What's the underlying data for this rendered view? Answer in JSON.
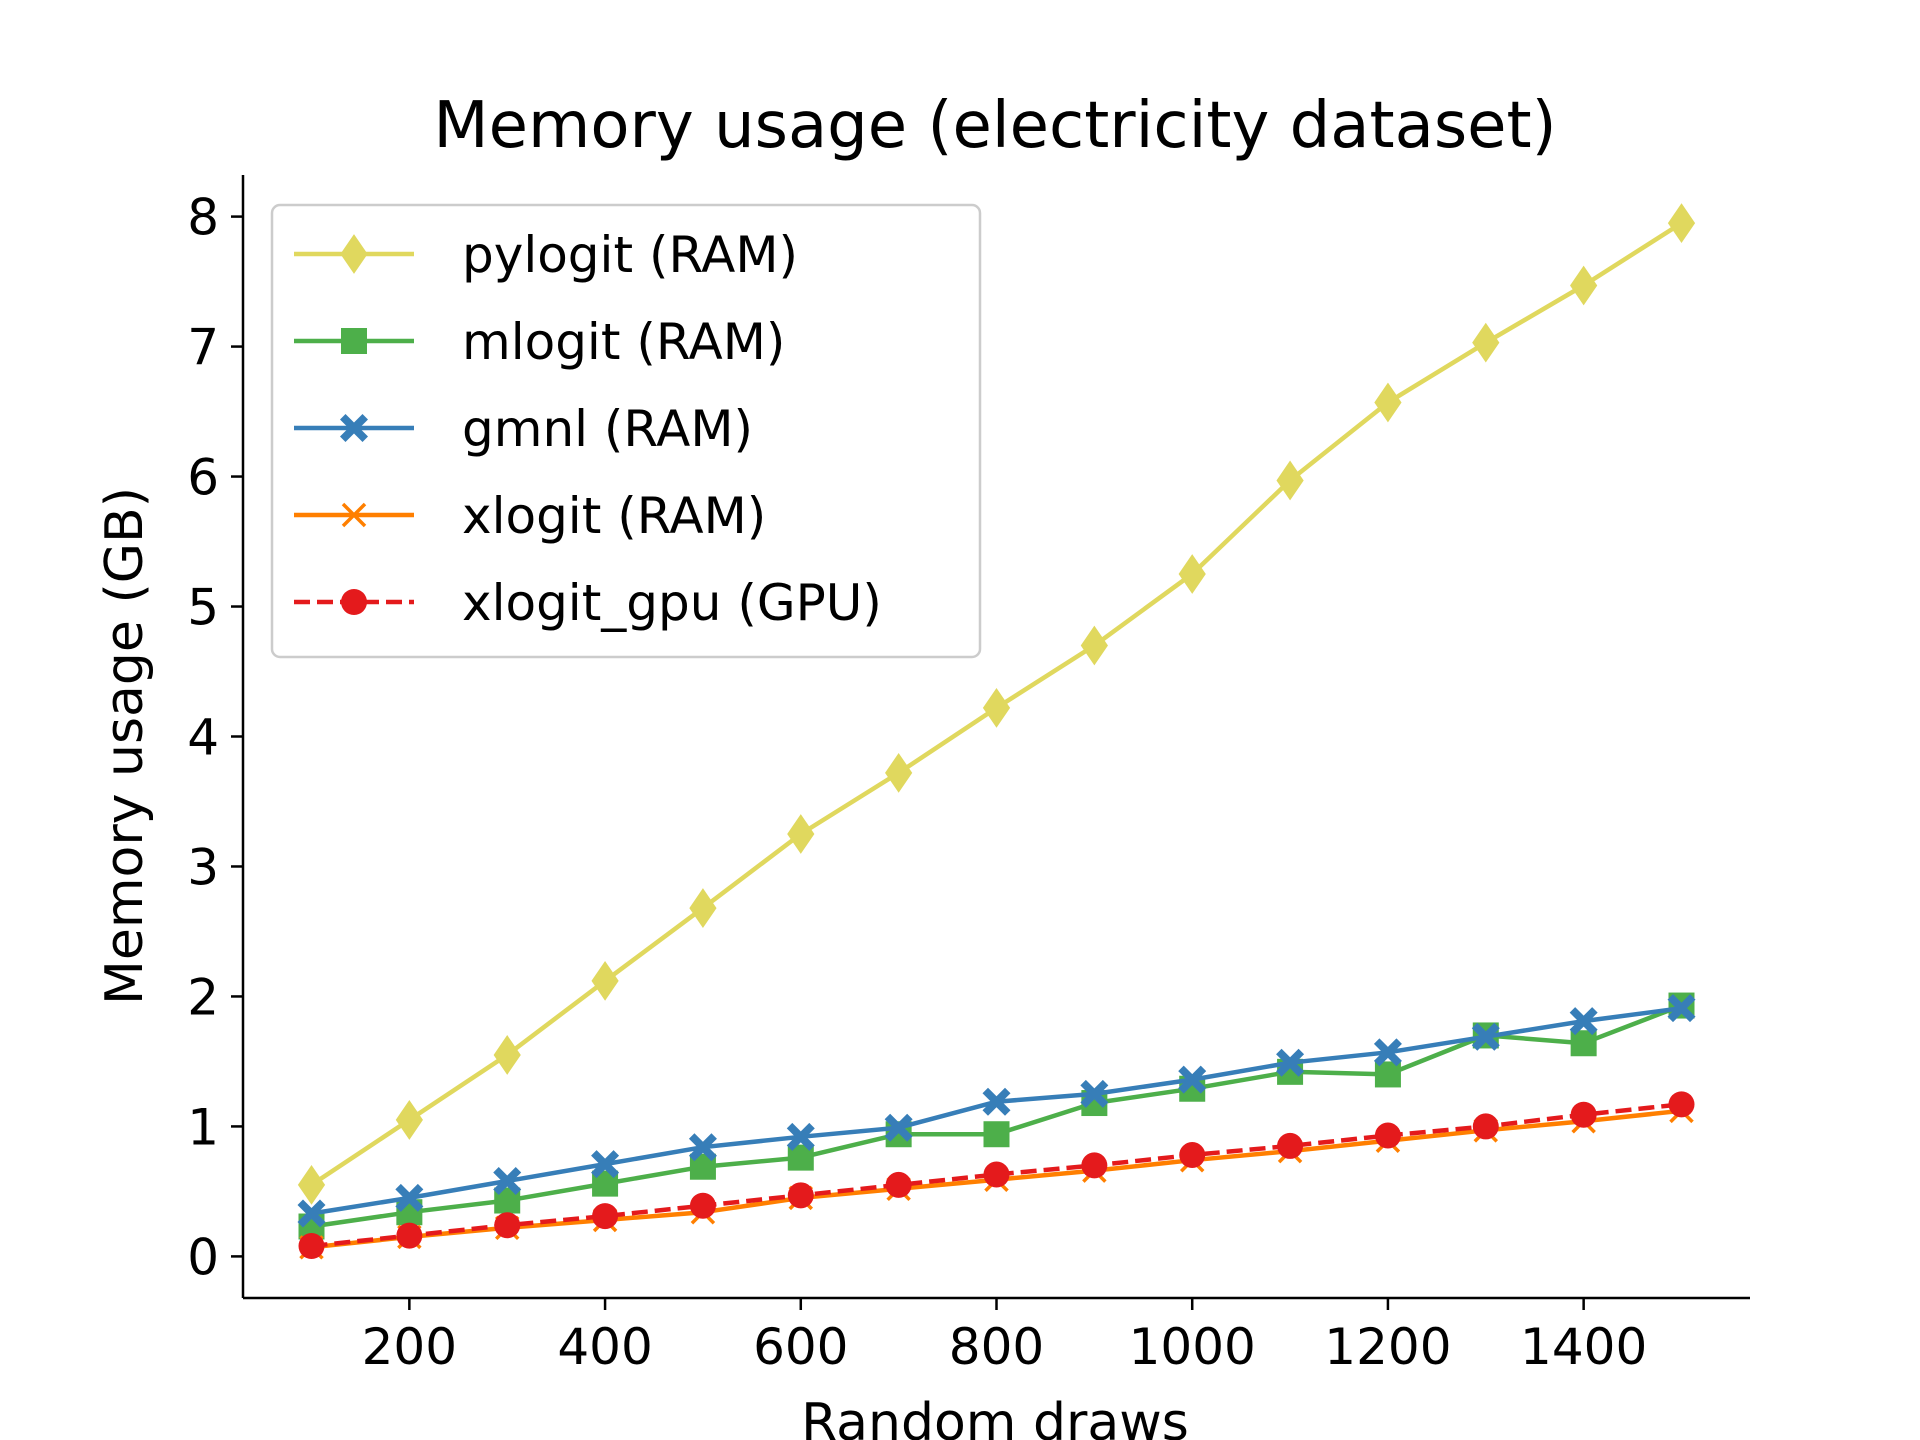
{
  "chart_data": {
    "type": "line",
    "title": "Memory usage (electricity dataset)",
    "xlabel": "Random draws",
    "ylabel": "Memory usage (GB)",
    "xlim": [
      30,
      1570
    ],
    "ylim": [
      -0.32,
      8.32
    ],
    "xticks": [
      200,
      400,
      600,
      800,
      1000,
      1200,
      1400
    ],
    "xtick_labels": [
      "200",
      "400",
      "600",
      "800",
      "1000",
      "1200",
      "1400"
    ],
    "yticks": [
      0,
      1,
      2,
      3,
      4,
      5,
      6,
      7,
      8
    ],
    "ytick_labels": [
      "0",
      "1",
      "2",
      "3",
      "4",
      "5",
      "6",
      "7",
      "8"
    ],
    "grid": false,
    "legend_position": "upper-left",
    "x": [
      100,
      200,
      300,
      400,
      500,
      600,
      700,
      800,
      900,
      1000,
      1100,
      1200,
      1300,
      1400,
      1500
    ],
    "series": [
      {
        "name": "pylogit (RAM)",
        "color": "#e0d85e",
        "marker": "diamond",
        "dash": "solid",
        "values": [
          0.55,
          1.05,
          1.55,
          2.12,
          2.68,
          3.25,
          3.72,
          4.22,
          4.7,
          5.25,
          5.97,
          6.57,
          7.03,
          7.47,
          7.95
        ]
      },
      {
        "name": "mlogit (RAM)",
        "color": "#4daf4a",
        "marker": "square",
        "dash": "solid",
        "values": [
          0.23,
          0.34,
          0.43,
          0.56,
          0.69,
          0.76,
          0.94,
          0.94,
          1.18,
          1.29,
          1.42,
          1.4,
          1.7,
          1.64,
          1.93
        ]
      },
      {
        "name": "gmnl (RAM)",
        "color": "#377eb8",
        "marker": "xfilled",
        "dash": "solid",
        "values": [
          0.33,
          0.45,
          0.58,
          0.71,
          0.84,
          0.92,
          0.99,
          1.19,
          1.25,
          1.36,
          1.49,
          1.57,
          1.69,
          1.81,
          1.91
        ]
      },
      {
        "name": "xlogit (RAM)",
        "color": "#ff7f00",
        "marker": "x",
        "dash": "solid",
        "values": [
          0.07,
          0.15,
          0.22,
          0.28,
          0.34,
          0.45,
          0.52,
          0.59,
          0.66,
          0.74,
          0.81,
          0.89,
          0.97,
          1.04,
          1.12
        ]
      },
      {
        "name": "xlogit_gpu (GPU)",
        "color": "#e41a1c",
        "marker": "circle",
        "dash": "dashed",
        "values": [
          0.08,
          0.16,
          0.24,
          0.31,
          0.39,
          0.47,
          0.55,
          0.63,
          0.7,
          0.78,
          0.85,
          0.93,
          1.0,
          1.09,
          1.17
        ]
      }
    ]
  }
}
